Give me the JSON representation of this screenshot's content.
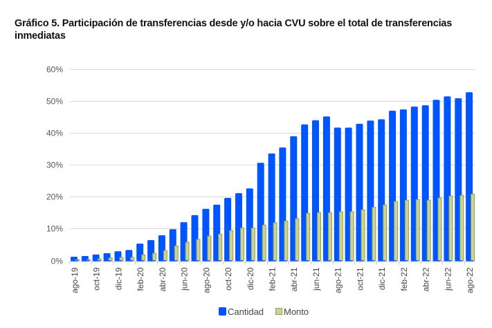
{
  "title": "Gráfico 5. Participación de transferencias desde y/o hacia CVU sobre el total de transferencias inmediatas",
  "chart_data": {
    "type": "bar",
    "title": "Gráfico 5. Participación de transferencias desde y/o hacia CVU sobre el total de transferencias inmediatas",
    "xlabel": "",
    "ylabel": "",
    "ylim": [
      0,
      60
    ],
    "yticks": [
      "0%",
      "10%",
      "20%",
      "30%",
      "40%",
      "50%",
      "60%"
    ],
    "ytick_values": [
      0,
      10,
      20,
      30,
      40,
      50,
      60
    ],
    "grid": true,
    "legend_position": "bottom",
    "categories": [
      "ago-19",
      "sep-19",
      "oct-19",
      "nov-19",
      "dic-19",
      "ene-20",
      "feb-20",
      "mar-20",
      "abr-20",
      "may-20",
      "jun-20",
      "jul-20",
      "ago-20",
      "sep-20",
      "oct-20",
      "nov-20",
      "dic-20",
      "ene-21",
      "feb-21",
      "mar-21",
      "abr-21",
      "may-21",
      "jun-21",
      "jul-21",
      "ago-21",
      "sep-21",
      "oct-21",
      "nov-21",
      "dic-21",
      "ene-22",
      "feb-22",
      "mar-22",
      "abr-22",
      "may-22",
      "jun-22",
      "jul-22",
      "ago-22"
    ],
    "xtick_labels": [
      "ago-19",
      "oct-19",
      "dic-19",
      "feb-20",
      "abr-20",
      "jun-20",
      "ago-20",
      "oct-20",
      "dic-20",
      "feb-21",
      "abr-21",
      "jun-21",
      "ago-21",
      "oct-21",
      "dic-21",
      "feb-22",
      "abr-22",
      "jun-22",
      "ago-22"
    ],
    "series": [
      {
        "name": "Cantidad",
        "color": "#0055FF",
        "values": [
          1.2,
          1.4,
          1.9,
          2.3,
          2.9,
          3.3,
          5.3,
          6.4,
          7.9,
          9.8,
          12.0,
          14.2,
          16.2,
          17.5,
          19.6,
          21.1,
          22.6,
          30.6,
          33.5,
          35.4,
          38.9,
          42.6,
          43.9,
          45.1,
          41.6,
          41.6,
          42.8,
          43.8,
          44.2,
          46.9,
          47.3,
          48.2,
          48.6,
          50.3,
          51.4,
          50.8,
          52.7
        ]
      },
      {
        "name": "Monto",
        "color": "#C9D49C",
        "border_color": "#8E9E4A",
        "values": [
          0.3,
          0.3,
          0.5,
          0.8,
          1.0,
          1.0,
          1.8,
          2.3,
          3.1,
          4.6,
          5.7,
          6.6,
          7.7,
          8.3,
          9.4,
          10.2,
          10.2,
          11.1,
          11.8,
          12.4,
          13.1,
          14.8,
          15.0,
          15.0,
          15.3,
          15.3,
          15.9,
          16.7,
          17.4,
          18.5,
          18.9,
          19.1,
          18.9,
          19.6,
          20.2,
          20.4,
          20.8
        ]
      }
    ]
  },
  "colors": {
    "grid": "#D9D9D9",
    "axis": "#CCCCCC"
  }
}
